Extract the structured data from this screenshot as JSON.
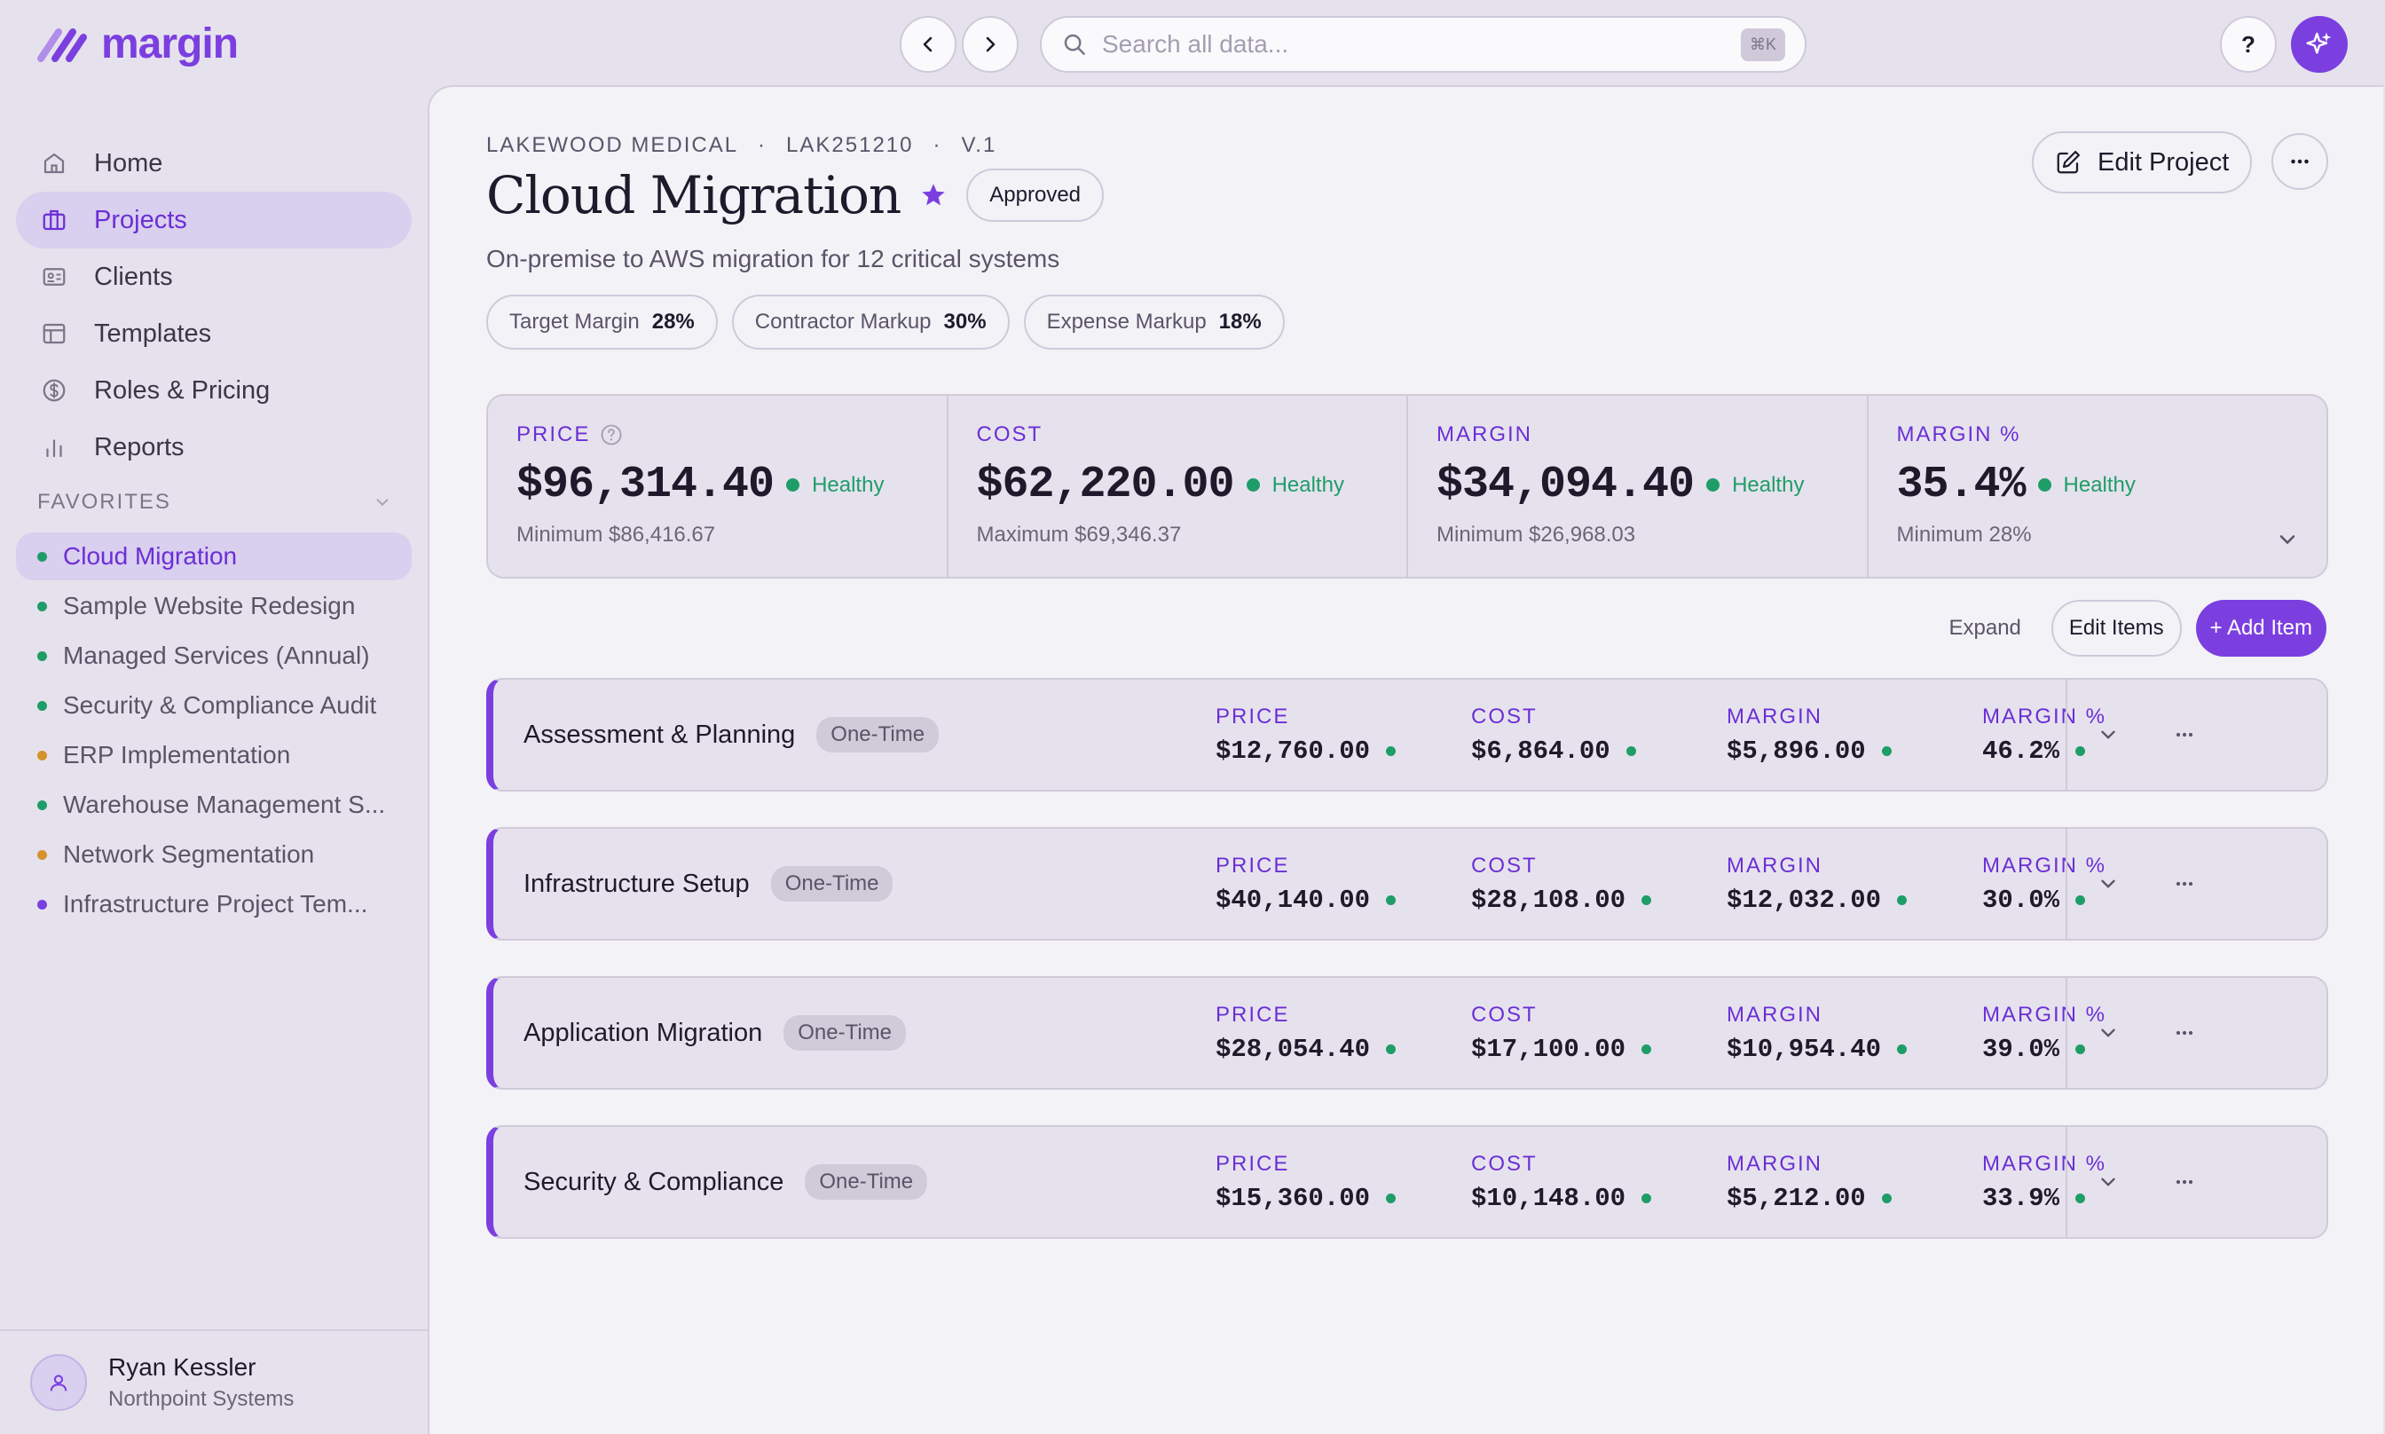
{
  "app": {
    "name": "margin"
  },
  "topbar": {
    "search_placeholder": "Search all data...",
    "shortcut": "⌘K",
    "help_label": "?"
  },
  "sidebar": {
    "nav": [
      {
        "label": "Home",
        "icon": "home-icon",
        "active": false
      },
      {
        "label": "Projects",
        "icon": "briefcase-icon",
        "active": true
      },
      {
        "label": "Clients",
        "icon": "contact-card-icon",
        "active": false
      },
      {
        "label": "Templates",
        "icon": "layout-icon",
        "active": false
      },
      {
        "label": "Roles & Pricing",
        "icon": "dollar-circle-icon",
        "active": false
      },
      {
        "label": "Reports",
        "icon": "bar-chart-icon",
        "active": false
      }
    ],
    "favorites_header": "FAVORITES",
    "favorites": [
      {
        "label": "Cloud Migration",
        "dot": "#1f9d68",
        "active": true
      },
      {
        "label": "Sample Website Redesign",
        "dot": "#1f9d68",
        "active": false
      },
      {
        "label": "Managed Services (Annual)",
        "dot": "#1f9d68",
        "active": false
      },
      {
        "label": "Security & Compliance Audit",
        "dot": "#1f9d68",
        "active": false
      },
      {
        "label": "ERP Implementation",
        "dot": "#d4922a",
        "active": false
      },
      {
        "label": "Warehouse Management S...",
        "dot": "#1f9d68",
        "active": false
      },
      {
        "label": "Network Segmentation",
        "dot": "#d4922a",
        "active": false
      },
      {
        "label": "Infrastructure Project Tem...",
        "dot": "#7b3fe0",
        "active": false
      }
    ],
    "user": {
      "name": "Ryan Kessler",
      "org": "Northpoint Systems"
    }
  },
  "project": {
    "client": "LAKEWOOD MEDICAL",
    "code": "LAK251210",
    "version": "V.1",
    "separator": "·",
    "title": "Cloud Migration",
    "status": "Approved",
    "description": "On-premise to AWS migration for 12 critical systems",
    "chips": [
      {
        "label": "Target Margin",
        "value": "28%"
      },
      {
        "label": "Contractor Markup",
        "value": "30%"
      },
      {
        "label": "Expense Markup",
        "value": "18%"
      }
    ],
    "edit_label": "Edit Project"
  },
  "summary": [
    {
      "label": "PRICE",
      "value": "$96,314.40",
      "status": "Healthy",
      "sub": "Minimum $86,416.67"
    },
    {
      "label": "COST",
      "value": "$62,220.00",
      "status": "Healthy",
      "sub": "Maximum $69,346.37"
    },
    {
      "label": "MARGIN",
      "value": "$34,094.40",
      "status": "Healthy",
      "sub": "Minimum $26,968.03"
    },
    {
      "label": "MARGIN %",
      "value": "35.4%",
      "status": "Healthy",
      "sub": "Minimum 28%"
    }
  ],
  "toolbar": {
    "expand": "Expand",
    "edit_items": "Edit Items",
    "add_item": "+ Add Item"
  },
  "item_labels": {
    "price": "PRICE",
    "cost": "COST",
    "margin": "MARGIN",
    "margin_pct": "MARGIN %"
  },
  "items": [
    {
      "name": "Assessment & Planning",
      "type": "One-Time",
      "price": "$12,760.00",
      "cost": "$6,864.00",
      "margin": "$5,896.00",
      "margin_pct": "46.2%"
    },
    {
      "name": "Infrastructure Setup",
      "type": "One-Time",
      "price": "$40,140.00",
      "cost": "$28,108.00",
      "margin": "$12,032.00",
      "margin_pct": "30.0%"
    },
    {
      "name": "Application Migration",
      "type": "One-Time",
      "price": "$28,054.40",
      "cost": "$17,100.00",
      "margin": "$10,954.40",
      "margin_pct": "39.0%"
    },
    {
      "name": "Security & Compliance",
      "type": "One-Time",
      "price": "$15,360.00",
      "cost": "$10,148.00",
      "margin": "$5,212.00",
      "margin_pct": "33.9%"
    }
  ],
  "colors": {
    "accent": "#7b3fe0",
    "healthy": "#1f9d68",
    "warning": "#d4922a"
  }
}
